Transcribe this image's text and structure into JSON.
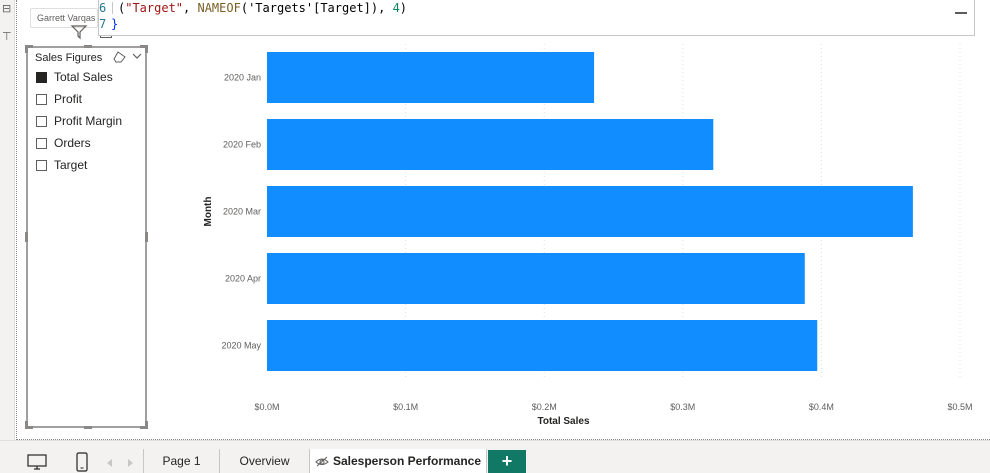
{
  "perspective": {
    "chip_label": "Garrett Varqas"
  },
  "editor": {
    "lines": [
      {
        "num": "6",
        "tokens": [
          {
            "t": "(",
            "c": "tok-plain"
          },
          {
            "t": "\"Target\"",
            "c": "tok-str"
          },
          {
            "t": ", ",
            "c": "tok-plain"
          },
          {
            "t": "NAMEOF",
            "c": "tok-fn"
          },
          {
            "t": "('Targets'[Target]), ",
            "c": "tok-plain"
          },
          {
            "t": "4",
            "c": "tok-num"
          },
          {
            "t": ")",
            "c": "tok-plain"
          }
        ]
      },
      {
        "num": "7",
        "tokens": [
          {
            "t": "}",
            "c": "tok-brace"
          }
        ]
      }
    ]
  },
  "slicer": {
    "title": "Sales Figures",
    "items": [
      {
        "label": "Total Sales",
        "checked": true
      },
      {
        "label": "Profit",
        "checked": false
      },
      {
        "label": "Profit Margin",
        "checked": false
      },
      {
        "label": "Orders",
        "checked": false
      },
      {
        "label": "Target",
        "checked": false
      }
    ]
  },
  "chart_data": {
    "type": "bar",
    "orientation": "horizontal",
    "categories": [
      "2020 Jan",
      "2020 Feb",
      "2020 Mar",
      "2020 Apr",
      "2020 May"
    ],
    "series": [
      {
        "values": [
          236000,
          322000,
          466000,
          388000,
          397000
        ],
        "color": "#118dff"
      }
    ],
    "xlabel": "Total Sales",
    "ylabel": "Month",
    "xlim": [
      0,
      500000
    ],
    "xticks": [
      {
        "v": 0,
        "label": "$0.0M"
      },
      {
        "v": 100000,
        "label": "$0.1M"
      },
      {
        "v": 200000,
        "label": "$0.2M"
      },
      {
        "v": 300000,
        "label": "$0.3M"
      },
      {
        "v": 400000,
        "label": "$0.4M"
      },
      {
        "v": 500000,
        "label": "$0.5M"
      }
    ],
    "grid": true
  },
  "tabs": {
    "page1": "Page 1",
    "overview": "Overview",
    "salesperson": "Salesperson Performance",
    "add": "+"
  }
}
